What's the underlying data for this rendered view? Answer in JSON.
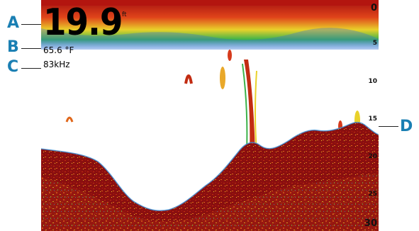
{
  "readouts": {
    "depth": "19.9",
    "depth_unit": "ft",
    "water_temperature": "65.6 °F",
    "frequency": "83kHz"
  },
  "depth_scale": {
    "labels": [
      "0",
      "5",
      "10",
      "15",
      "20",
      "25",
      "30"
    ]
  },
  "callouts": {
    "a": "A",
    "b": "B",
    "c": "C",
    "d": "D"
  },
  "colors": {
    "callout": "#1a7fb3",
    "bottom_echo": "#8a0f0f",
    "surface_clutter": "#d63a1c",
    "weak_return": "#2f6fd6"
  }
}
